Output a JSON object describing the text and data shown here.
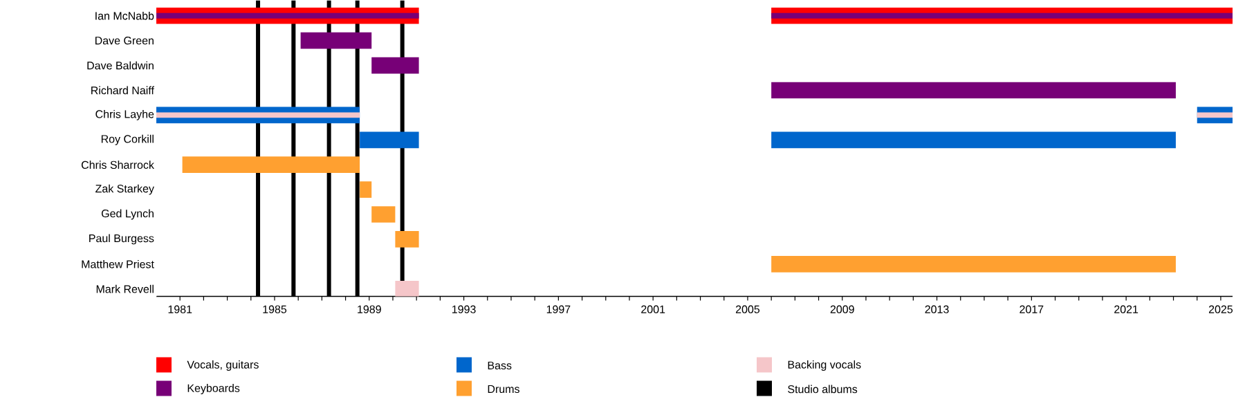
{
  "chart_data": {
    "type": "bar",
    "orientation": "horizontal",
    "categories": [
      "Ian McNabb",
      "Dave Green",
      "Dave Baldwin",
      "Richard Naiff",
      "Chris Layhe",
      "Roy Corkill",
      "Chris Sharrock",
      "Zak Starkey",
      "Ged Lynch",
      "Paul Burgess",
      "Matthew Priest",
      "Mark Revell"
    ],
    "series": [
      {
        "name": "Vocals, guitars",
        "color": "#ff0000",
        "base": [
          1980,
          null,
          null,
          null,
          null,
          null,
          null,
          null,
          null,
          null,
          null,
          null
        ],
        "values": [
          11.1,
          null,
          null,
          null,
          null,
          null,
          null,
          null,
          null,
          null,
          null,
          null
        ]
      },
      {
        "color": "#ff0000",
        "base": [
          2006,
          null,
          null,
          null,
          null,
          null,
          null,
          null,
          null,
          null,
          null,
          null
        ],
        "values": [
          19.5,
          null,
          null,
          null,
          null,
          null,
          null,
          null,
          null,
          null,
          null,
          null
        ]
      },
      {
        "name": "Keyboards",
        "color": "#770077",
        "base": [
          1980,
          1986.1,
          1989.1,
          2006,
          null,
          null,
          null,
          null,
          null,
          null,
          null,
          null
        ],
        "values": [
          11.1,
          3.0,
          2.0,
          17.1,
          null,
          null,
          null,
          null,
          null,
          null,
          null,
          null
        ]
      },
      {
        "color": "#770077",
        "base": [
          2006,
          null,
          null,
          null,
          null,
          null,
          null,
          null,
          null,
          null,
          null,
          null
        ],
        "values": [
          19.5,
          null,
          null,
          null,
          null,
          null,
          null,
          null,
          null,
          null,
          null,
          null
        ]
      },
      {
        "name": "Bass",
        "color": "#0066cc",
        "base": [
          null,
          null,
          null,
          null,
          1980,
          1988.6,
          null,
          null,
          null,
          null,
          null,
          null
        ],
        "values": [
          null,
          null,
          null,
          null,
          8.6,
          2.5,
          null,
          null,
          null,
          null,
          null,
          null
        ]
      },
      {
        "color": "#0066cc",
        "base": [
          null,
          null,
          null,
          null,
          2024,
          2006,
          null,
          null,
          null,
          null,
          null,
          null
        ],
        "values": [
          null,
          null,
          null,
          null,
          1.5,
          17.1,
          null,
          null,
          null,
          null,
          null,
          null
        ]
      },
      {
        "name": "Drums",
        "color": "#ffa030",
        "base": [
          null,
          null,
          null,
          null,
          null,
          null,
          1981.1,
          1988.6,
          1989.1,
          1990.1,
          2006,
          null
        ],
        "values": [
          null,
          null,
          null,
          null,
          null,
          null,
          7.5,
          0.5,
          1.0,
          1.0,
          17.1,
          null
        ]
      },
      {
        "name": "Backing vocals",
        "color": "#f5c6c9",
        "base": [
          null,
          null,
          null,
          null,
          1980,
          null,
          null,
          null,
          null,
          null,
          null,
          1990.1
        ],
        "values": [
          null,
          null,
          null,
          null,
          8.6,
          null,
          null,
          null,
          null,
          null,
          null,
          1.0
        ]
      },
      {
        "color": "#f5c6c9",
        "base": [
          null,
          null,
          null,
          null,
          2024,
          null,
          null,
          null,
          null,
          null,
          null,
          null
        ],
        "values": [
          null,
          null,
          null,
          null,
          1.5,
          null,
          null,
          null,
          null,
          null,
          null,
          null
        ]
      }
    ],
    "ref_lines": [
      {
        "axis": "x",
        "value": 1984.3,
        "color": "#000000",
        "label": "Studio albums"
      },
      {
        "axis": "x",
        "value": 1985.8,
        "color": "#000000"
      },
      {
        "axis": "x",
        "value": 1987.3,
        "color": "#000000"
      },
      {
        "axis": "x",
        "value": 1988.5,
        "color": "#000000"
      },
      {
        "axis": "x",
        "value": 1990.4,
        "color": "#000000"
      }
    ],
    "xlim": [
      1980,
      2025.5
    ],
    "xticks": [
      1981,
      {
        "value": 1982,
        "label": null
      },
      {
        "value": 1983,
        "label": null
      },
      {
        "value": 1984,
        "label": null
      },
      1985,
      {
        "value": 1986,
        "label": null
      },
      {
        "value": 1987,
        "label": null
      },
      {
        "value": 1988,
        "label": null
      },
      1989,
      {
        "value": 1990,
        "label": null
      },
      {
        "value": 1991,
        "label": null
      },
      {
        "value": 1992,
        "label": null
      },
      1993,
      {
        "value": 1994,
        "label": null
      },
      {
        "value": 1995,
        "label": null
      },
      {
        "value": 1996,
        "label": null
      },
      1997,
      {
        "value": 1998,
        "label": null
      },
      {
        "value": 1999,
        "label": null
      },
      {
        "value": 2000,
        "label": null
      },
      2001,
      {
        "value": 2002,
        "label": null
      },
      {
        "value": 2003,
        "label": null
      },
      {
        "value": 2004,
        "label": null
      },
      2005,
      {
        "value": 2006,
        "label": null
      },
      {
        "value": 2007,
        "label": null
      },
      {
        "value": 2008,
        "label": null
      },
      2009,
      {
        "value": 2010,
        "label": null
      },
      {
        "value": 2011,
        "label": null
      },
      {
        "value": 2012,
        "label": null
      },
      2013,
      {
        "value": 2014,
        "label": null
      },
      {
        "value": 2015,
        "label": null
      },
      {
        "value": 2016,
        "label": null
      },
      2017,
      {
        "value": 2018,
        "label": null
      },
      {
        "value": 2019,
        "label": null
      },
      {
        "value": 2020,
        "label": null
      },
      2021,
      {
        "value": 2022,
        "label": null
      },
      {
        "value": 2023,
        "label": null
      },
      {
        "value": 2024,
        "label": null
      },
      2025
    ],
    "legend": "bottom"
  }
}
